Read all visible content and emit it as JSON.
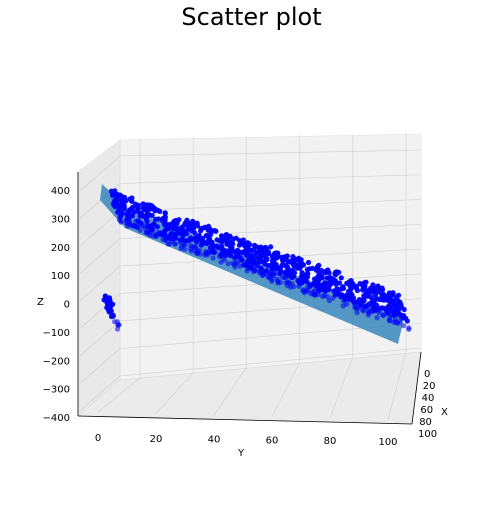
{
  "chart_data": {
    "type": "scatter",
    "projection": "3d",
    "title": "Scatter plot",
    "xlabel": "X",
    "ylabel": "Y",
    "zlabel": "Z",
    "xlim": [
      0,
      100
    ],
    "ylim": [
      0,
      100
    ],
    "zlim": [
      -400,
      400
    ],
    "x_ticks": [
      "0",
      "20",
      "40",
      "60",
      "80",
      "100"
    ],
    "y_ticks": [
      "0",
      "20",
      "40",
      "60",
      "80",
      "100"
    ],
    "z_ticks": [
      "400",
      "300",
      "200",
      "100",
      "0",
      "−100",
      "−200",
      "−300",
      "−400"
    ],
    "grid": true,
    "marker_color": "#0000ff",
    "plane_color": "#1f77b4",
    "points": [
      {
        "y": 2,
        "z": 395
      },
      {
        "y": 10,
        "z": 360
      },
      {
        "y": 18,
        "z": 330
      },
      {
        "y": 25,
        "z": 300
      },
      {
        "y": 33,
        "z": 270
      },
      {
        "y": 40,
        "z": 245
      },
      {
        "y": 48,
        "z": 215
      },
      {
        "y": 55,
        "z": 190
      },
      {
        "y": 63,
        "z": 160
      },
      {
        "y": 70,
        "z": 135
      },
      {
        "y": 78,
        "z": 105
      },
      {
        "y": 85,
        "z": 80
      },
      {
        "y": 93,
        "z": 50
      },
      {
        "y": 100,
        "z": 20
      }
    ]
  }
}
